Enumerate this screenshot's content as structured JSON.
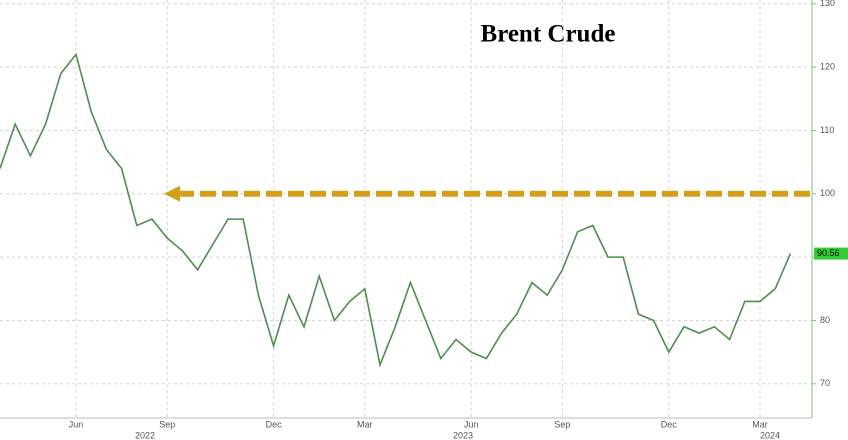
{
  "chart_data": {
    "type": "line",
    "title": "Brent Crude",
    "categories": [
      null,
      null,
      null,
      null,
      null,
      "Jun",
      null,
      null,
      null,
      null,
      null,
      "Sep",
      null,
      null,
      null,
      null,
      null,
      null,
      "Dec",
      null,
      null,
      null,
      null,
      null,
      "Mar",
      null,
      null,
      null,
      null,
      null,
      null,
      "Jun",
      null,
      null,
      null,
      null,
      null,
      "Sep",
      null,
      null,
      null,
      null,
      null,
      null,
      "Dec",
      null,
      null,
      null,
      null,
      null,
      "Mar",
      null,
      null
    ],
    "years": [
      "2022",
      "2023",
      "2024"
    ],
    "series": [
      {
        "color": "#4e8f4e",
        "values": [
          104,
          111,
          106,
          111,
          119,
          122,
          113,
          107,
          104,
          95,
          96,
          93,
          91,
          88,
          92,
          96,
          96,
          84,
          76,
          84,
          79,
          87,
          80,
          83,
          85,
          73,
          79,
          86,
          80,
          74,
          77,
          75,
          74,
          78,
          81,
          86,
          84,
          88,
          94,
          95,
          90,
          90,
          81,
          80,
          75,
          79,
          78,
          79,
          77,
          83,
          83,
          85,
          90.56
        ]
      }
    ],
    "last_label": "90.56",
    "reference_line": {
      "value": 100,
      "color": "#d4a017"
    },
    "ylim": [
      64.6,
      130.6
    ],
    "yticks": [
      70,
      80,
      90,
      100,
      110,
      120,
      130
    ],
    "grid": true
  }
}
